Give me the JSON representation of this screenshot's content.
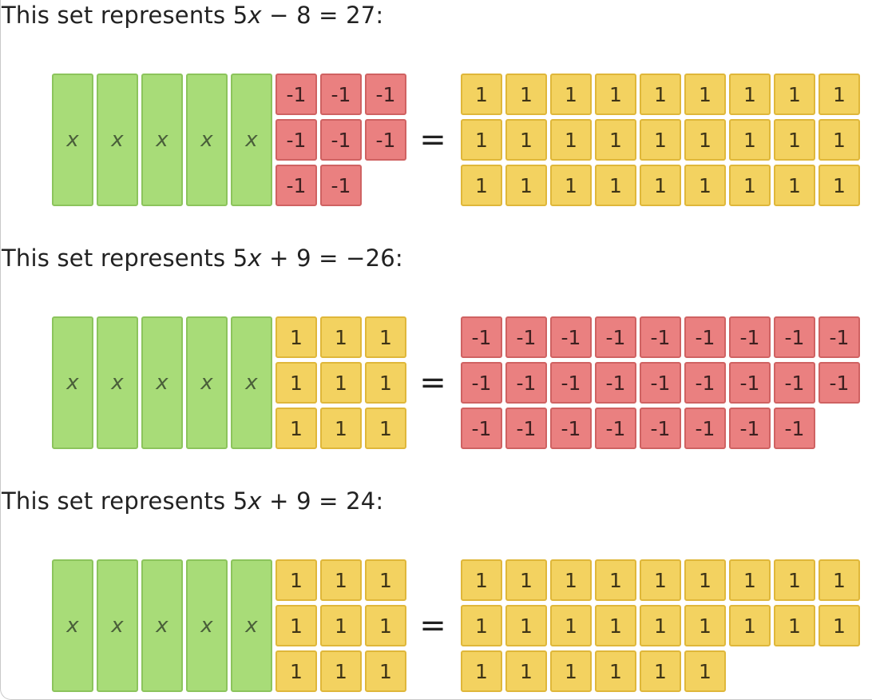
{
  "sets": [
    {
      "title_prefix": "This set represents 5",
      "title_var": "x",
      "title_suffix": " − 8 = 27:",
      "x_label": "x",
      "x_count": 5,
      "left_unit": {
        "label": "-1",
        "kind": "n",
        "count": 8
      },
      "equals": "=",
      "right_unit": {
        "label": "1",
        "kind": "p",
        "count": 27
      }
    },
    {
      "title_prefix": "This set represents 5",
      "title_var": "x",
      "title_suffix": " + 9 = −26:",
      "x_label": "x",
      "x_count": 5,
      "left_unit": {
        "label": "1",
        "kind": "p",
        "count": 9
      },
      "equals": "=",
      "right_unit": {
        "label": "-1",
        "kind": "n",
        "count": 26
      }
    },
    {
      "title_prefix": "This set represents 5",
      "title_var": "x",
      "title_suffix": " + 9 = 24:",
      "x_label": "x",
      "x_count": 5,
      "left_unit": {
        "label": "1",
        "kind": "p",
        "count": 9
      },
      "equals": "=",
      "right_unit": {
        "label": "1",
        "kind": "p",
        "count": 24
      }
    }
  ],
  "colors": {
    "x_tile": "#a8dc78",
    "negative_tile": "#ea8080",
    "positive_tile": "#f3d260"
  }
}
